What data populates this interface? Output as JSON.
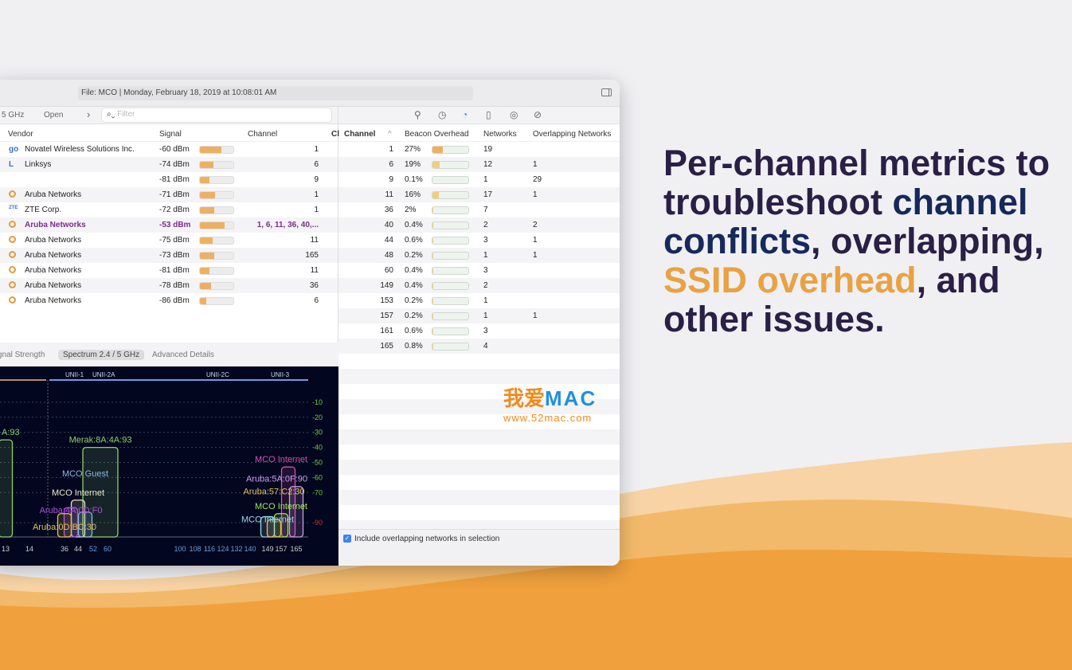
{
  "colors": {
    "accent_orange": "#f0a03c",
    "headline_dark": "#2a1f45",
    "headline_blue": "#17295b",
    "headline_orange": "#e9a243",
    "selected_row": "#7b2d8b"
  },
  "window": {
    "file_label": "File: MCO | Monday, February 18, 2019 at 10:08:01 AM"
  },
  "left_toolbar": {
    "band": "5 GHz",
    "open": "Open",
    "chevron": "›",
    "filter_placeholder": "Filter"
  },
  "networks_table": {
    "headers": [
      "Vendor",
      "Signal",
      "Channel",
      "Cl"
    ],
    "rows": [
      {
        "icon": "go",
        "vendor": "Novatel Wireless Solutions Inc.",
        "signal": "-60 dBm",
        "signal_pct": 65,
        "channel": "1"
      },
      {
        "icon": "L",
        "vendor": "Linksys",
        "signal": "-74 dBm",
        "signal_pct": 40,
        "channel": "6"
      },
      {
        "icon": "",
        "vendor": "",
        "signal": "-81 dBm",
        "signal_pct": 28,
        "channel": "9"
      },
      {
        "icon": "aruba",
        "vendor": "Aruba Networks",
        "signal": "-71 dBm",
        "signal_pct": 46,
        "channel": "1"
      },
      {
        "icon": "ZTE",
        "vendor": "ZTE Corp.",
        "signal": "-72 dBm",
        "signal_pct": 44,
        "channel": "1"
      },
      {
        "icon": "aruba",
        "vendor": "Aruba Networks",
        "signal": "-53 dBm",
        "signal_pct": 74,
        "channel": "1, 6, 11, 36, 40,...",
        "selected": true
      },
      {
        "icon": "aruba",
        "vendor": "Aruba Networks",
        "signal": "-75 dBm",
        "signal_pct": 38,
        "channel": "11"
      },
      {
        "icon": "aruba",
        "vendor": "Aruba Networks",
        "signal": "-73 dBm",
        "signal_pct": 42,
        "channel": "165"
      },
      {
        "icon": "aruba",
        "vendor": "Aruba Networks",
        "signal": "-81 dBm",
        "signal_pct": 28,
        "channel": "11"
      },
      {
        "icon": "aruba",
        "vendor": "Aruba Networks",
        "signal": "-78 dBm",
        "signal_pct": 33,
        "channel": "36"
      },
      {
        "icon": "aruba",
        "vendor": "Aruba Networks",
        "signal": "-86 dBm",
        "signal_pct": 18,
        "channel": "6"
      }
    ]
  },
  "bottom_tabs": [
    "Signal Strength",
    "Spectrum 2.4 / 5 GHz",
    "Advanced Details"
  ],
  "spectrum": {
    "bands": [
      "UNII-1",
      "UNII-2A",
      "UNII-2C",
      "UNII-3"
    ],
    "y_ticks": [
      "-10",
      "-20",
      "-30",
      "-40",
      "-50",
      "-60",
      "-70",
      "-90"
    ],
    "x_ticks": [
      "13",
      "14",
      "36",
      "44",
      "52",
      "60",
      "100",
      "108",
      "116",
      "124",
      "132",
      "140",
      "149",
      "157",
      "165"
    ],
    "networks": [
      {
        "label": "Merak:8A:4A:93",
        "channel": 56,
        "width": 4,
        "dbm": -40,
        "color": "#8fd16a"
      },
      {
        "label": "MCO Internet",
        "channel": 161,
        "width": 1,
        "dbm": -53,
        "color": "#d94fb5"
      },
      {
        "label": "MCO Internet",
        "channel": 44,
        "width": 1,
        "dbm": -75,
        "color": "#e8e8c8"
      },
      {
        "label": "Aruba:4A:0D:F0",
        "channel": 40,
        "width": 1,
        "dbm": -80,
        "color": "#b04fd9"
      },
      {
        "label": "Aruba:0D:BC:30",
        "channel": 36,
        "width": 1,
        "dbm": -84,
        "color": "#e6c15a"
      },
      {
        "label": "MCO Guest",
        "channel": 48,
        "width": 1,
        "dbm": -83,
        "color": "#8fb6e0"
      },
      {
        "label": "Aruba:5A:0F:90",
        "channel": 165,
        "width": 1,
        "dbm": -66,
        "color": "#c9a0e6"
      },
      {
        "label": "MCO Internet",
        "channel": 157,
        "width": 1,
        "dbm": -84,
        "color": "#9de85a"
      },
      {
        "label": "MCO Internet",
        "channel": 149,
        "width": 1,
        "dbm": -86,
        "color": "#9adbe6"
      },
      {
        "label": "Aruba:57:C2:30",
        "channel": 153,
        "width": 1,
        "dbm": -88,
        "color": "#e6c15a"
      },
      {
        "label": "A:93",
        "channel": 13,
        "width": 1,
        "dbm": -35,
        "color": "#8fd16a"
      }
    ]
  },
  "right_toolbar_icons": [
    "wifi-scan-icon",
    "history-clock-icon",
    "speedometer-icon",
    "device-icon",
    "broadcast-icon",
    "compass-icon"
  ],
  "channel_table": {
    "headers": [
      "Channel",
      "Beacon Overhead",
      "Networks",
      "Overlapping Networks"
    ],
    "rows": [
      {
        "channel": "1",
        "overhead": "27%",
        "pct": 27,
        "networks": "19",
        "overlap": ""
      },
      {
        "channel": "6",
        "overhead": "19%",
        "pct": 19,
        "networks": "12",
        "overlap": "1"
      },
      {
        "channel": "9",
        "overhead": "0.1%",
        "pct": 0.1,
        "networks": "1",
        "overlap": "29"
      },
      {
        "channel": "11",
        "overhead": "16%",
        "pct": 16,
        "networks": "17",
        "overlap": "1"
      },
      {
        "channel": "36",
        "overhead": "2%",
        "pct": 2,
        "networks": "7",
        "overlap": ""
      },
      {
        "channel": "40",
        "overhead": "0.4%",
        "pct": 0.4,
        "networks": "2",
        "overlap": "2"
      },
      {
        "channel": "44",
        "overhead": "0.6%",
        "pct": 0.6,
        "networks": "3",
        "overlap": "1"
      },
      {
        "channel": "48",
        "overhead": "0.2%",
        "pct": 0.2,
        "networks": "1",
        "overlap": "1"
      },
      {
        "channel": "60",
        "overhead": "0.4%",
        "pct": 0.4,
        "networks": "3",
        "overlap": ""
      },
      {
        "channel": "149",
        "overhead": "0.4%",
        "pct": 0.4,
        "networks": "2",
        "overlap": ""
      },
      {
        "channel": "153",
        "overhead": "0.2%",
        "pct": 0.2,
        "networks": "1",
        "overlap": ""
      },
      {
        "channel": "157",
        "overhead": "0.2%",
        "pct": 0.2,
        "networks": "1",
        "overlap": "1"
      },
      {
        "channel": "161",
        "overhead": "0.6%",
        "pct": 0.6,
        "networks": "3",
        "overlap": ""
      },
      {
        "channel": "165",
        "overhead": "0.8%",
        "pct": 0.8,
        "networks": "4",
        "overlap": ""
      }
    ]
  },
  "include_overlapping": {
    "label": "Include overlapping networks in selection",
    "checked": true
  },
  "headline": {
    "p1": "Per-channel metrics to troubleshoot ",
    "p2": "channel conflicts",
    "p3": ", overlapping, ",
    "p4": "SSID overhead",
    "p5": ", and other issues."
  },
  "watermark": {
    "cn": "我爱",
    "mac": "MAC",
    "url": "www.52mac.com"
  }
}
